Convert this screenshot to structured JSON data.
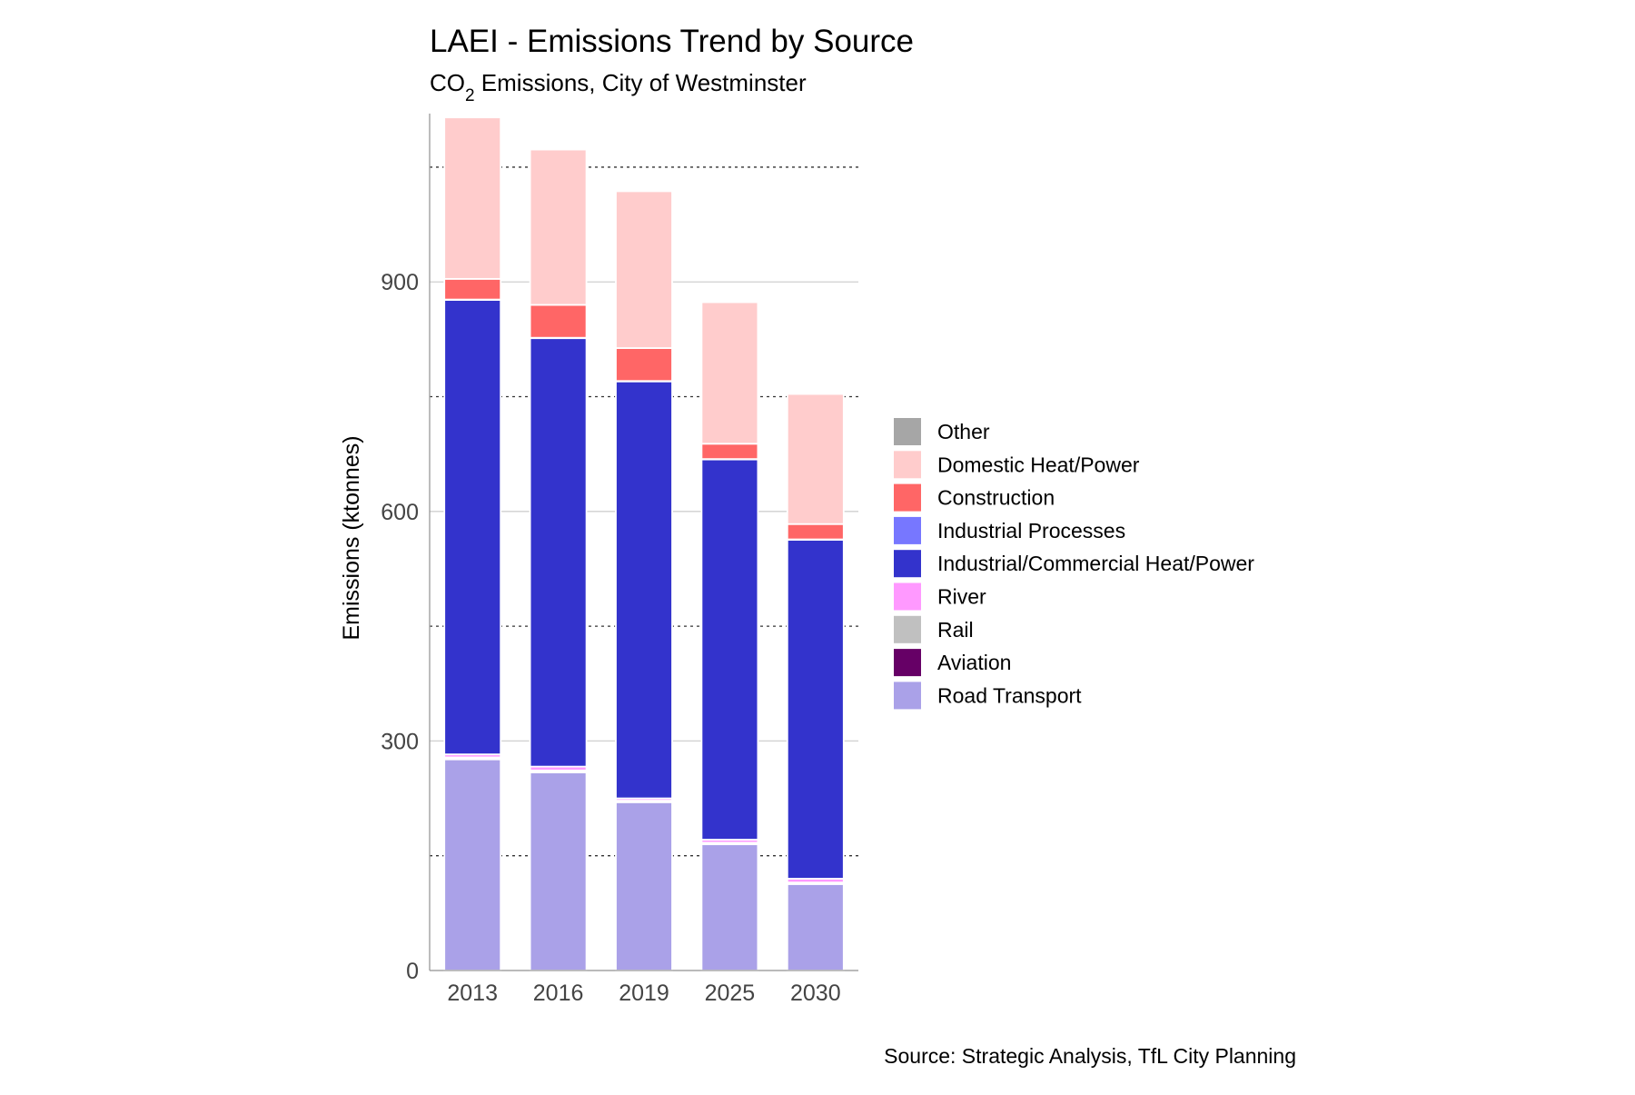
{
  "chart_data": {
    "type": "bar",
    "stacked": true,
    "title": "LAEI - Emissions Trend by Source",
    "subtitle": {
      "prefix": "CO",
      "subscript": "2",
      "suffix": " Emissions, City of Westminster"
    },
    "ylabel": "Emissions (ktonnes)",
    "xlabel": "",
    "ylim": [
      0,
      1120
    ],
    "yticks": [
      0,
      300,
      600,
      900
    ],
    "ytick_labels": [
      "0",
      "300",
      "600",
      "900"
    ],
    "minor_gridlines": [
      150,
      450,
      750,
      1050
    ],
    "grid": true,
    "legend_position": "right",
    "caption": "Source: Strategic Analysis, TfL City Planning",
    "categories": [
      "2013",
      "2016",
      "2019",
      "2025",
      "2030"
    ],
    "legend_order": [
      "Other",
      "Domestic Heat/Power",
      "Construction",
      "Industrial Processes",
      "Industrial/Commercial Heat/Power",
      "River",
      "Rail",
      "Aviation",
      "Road Transport"
    ],
    "series": [
      {
        "name": "Road Transport",
        "color": "#aaa1e8",
        "values": [
          276,
          259,
          220,
          165,
          113
        ]
      },
      {
        "name": "Aviation",
        "color": "#660066",
        "values": [
          0.5,
          0.5,
          0.5,
          0.5,
          0.5
        ]
      },
      {
        "name": "Rail",
        "color": "#c0c0c0",
        "values": [
          2,
          2,
          1.5,
          1.5,
          1.5
        ]
      },
      {
        "name": "River",
        "color": "#ff99ff",
        "values": [
          4,
          5,
          3,
          4,
          5
        ]
      },
      {
        "name": "Industrial/Commercial Heat/Power",
        "color": "#3333cc",
        "values": [
          594,
          560,
          545,
          497,
          443
        ]
      },
      {
        "name": "Industrial Processes",
        "color": "#7777ff",
        "values": [
          0.5,
          0.5,
          0.5,
          0.5,
          0.5
        ]
      },
      {
        "name": "Construction",
        "color": "#ff6666",
        "values": [
          27,
          43,
          43,
          20,
          20
        ]
      },
      {
        "name": "Domestic Heat/Power",
        "color": "#ffcccc",
        "values": [
          211,
          203,
          205,
          185,
          170
        ]
      },
      {
        "name": "Other",
        "color": "#a6a6a6",
        "values": [
          0,
          0,
          0,
          0,
          0
        ]
      }
    ]
  }
}
